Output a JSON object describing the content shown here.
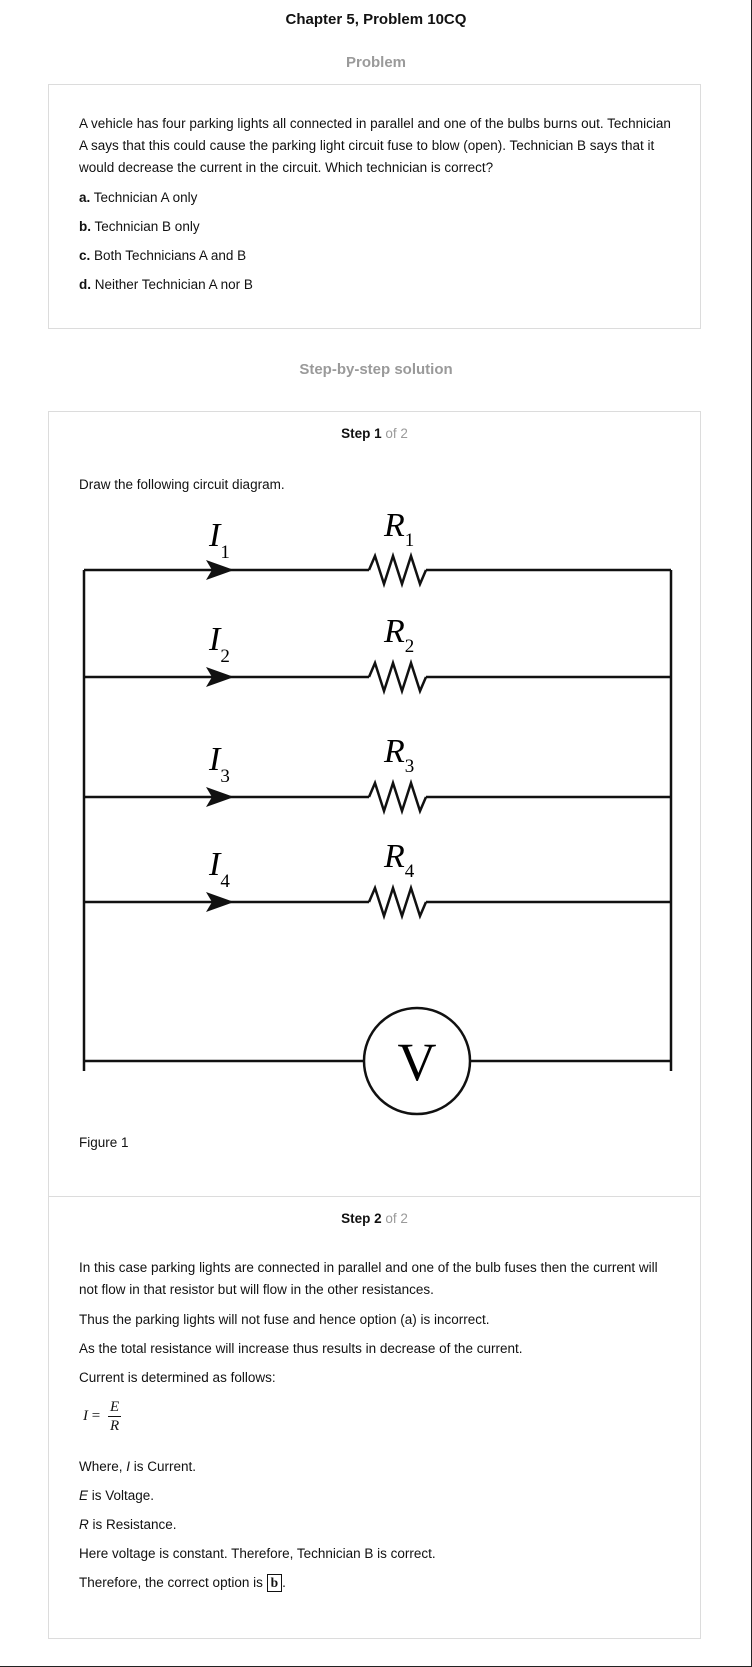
{
  "header": {
    "title": "Chapter 5, Problem 10CQ"
  },
  "problem": {
    "heading": "Problem",
    "question": "A vehicle has four parking lights all connected in parallel and one of the bulbs burns out. Technician A says that this could cause the parking light circuit fuse to blow (open). Technician B says that it would decrease the current in the circuit. Which technician is correct?",
    "options": [
      {
        "letter": "a.",
        "text": "Technician A only"
      },
      {
        "letter": "b.",
        "text": "Technician B only"
      },
      {
        "letter": "c.",
        "text": "Both Technicians A and B"
      },
      {
        "letter": "d.",
        "text": "Neither Technician A nor B"
      }
    ]
  },
  "solution": {
    "heading": "Step-by-step solution",
    "step1": {
      "label": "Step 1",
      "of": "of 2",
      "intro": "Draw the following circuit diagram.",
      "figure_caption": "Figure 1",
      "diagram": {
        "currents": [
          "I",
          "I",
          "I",
          "I"
        ],
        "current_subscripts": [
          "1",
          "2",
          "3",
          "4"
        ],
        "resistors": [
          "R",
          "R",
          "R",
          "R"
        ],
        "resistor_subscripts": [
          "1",
          "2",
          "3",
          "4"
        ],
        "source_label": "V"
      }
    },
    "step2": {
      "label": "Step 2",
      "of": "of 2",
      "p1": "In this case parking lights are connected in parallel and one of the bulb fuses then the current will not flow in that resistor but will flow in the other resistances.",
      "p2": "Thus the parking lights will not fuse and hence option (a) is incorrect.",
      "p3": "As the total resistance will increase thus results in decrease of the current.",
      "p4": "Current is determined as follows:",
      "formula": {
        "lhs": "I",
        "eq": "=",
        "num": "E",
        "den": "R"
      },
      "where": [
        {
          "var": "I",
          "prefix": "Where, ",
          "text": " is Current."
        },
        {
          "var": "E",
          "prefix": "",
          "text": " is Voltage."
        },
        {
          "var": "R",
          "prefix": "",
          "text": " is Resistance."
        }
      ],
      "p5": "Here voltage is constant. Therefore, Technician B is correct.",
      "conclusion_prefix": "Therefore, the correct option is ",
      "answer": "b",
      "conclusion_suffix": "."
    }
  }
}
